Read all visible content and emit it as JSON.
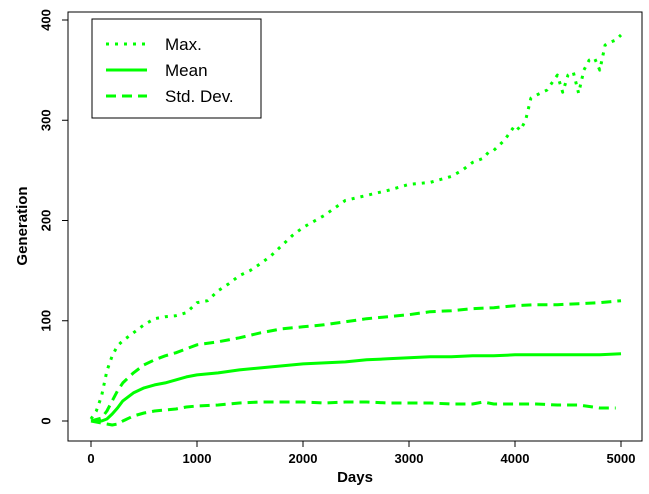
{
  "chart_data": {
    "type": "line",
    "title": "",
    "xlabel": "Days",
    "ylabel": "Generation",
    "xlim": [
      0,
      5000
    ],
    "ylim": [
      0,
      400
    ],
    "xticks": [
      "0",
      "1000",
      "2000",
      "3000",
      "4000",
      "5000"
    ],
    "yticks": [
      "0",
      "100",
      "200",
      "300",
      "400"
    ],
    "grid": false,
    "legend_position": "top-left",
    "line_color": "#00ff00",
    "series": [
      {
        "name": "Max.",
        "style": "dotted",
        "x": [
          0,
          50,
          100,
          150,
          200,
          250,
          300,
          400,
          500,
          600,
          700,
          800,
          900,
          1000,
          1100,
          1200,
          1300,
          1400,
          1500,
          1600,
          1700,
          1800,
          1900,
          2000,
          2200,
          2400,
          2600,
          2800,
          3000,
          3200,
          3400,
          3500,
          3600,
          3700,
          3750,
          3800,
          3900,
          4000,
          4050,
          4100,
          4150,
          4200,
          4300,
          4400,
          4450,
          4500,
          4550,
          4600,
          4650,
          4700,
          4750,
          4800,
          4850,
          4900,
          4950,
          5000
        ],
        "y": [
          2,
          10,
          25,
          50,
          65,
          75,
          80,
          88,
          96,
          102,
          104,
          105,
          108,
          118,
          120,
          130,
          137,
          145,
          150,
          157,
          165,
          175,
          185,
          193,
          205,
          220,
          225,
          230,
          236,
          238,
          244,
          250,
          258,
          262,
          268,
          270,
          280,
          295,
          290,
          300,
          322,
          325,
          330,
          345,
          328,
          345,
          348,
          327,
          350,
          360,
          362,
          350,
          375,
          378,
          380,
          385
        ]
      },
      {
        "name": "Mean",
        "style": "solid",
        "x": [
          0,
          100,
          150,
          200,
          250,
          300,
          400,
          500,
          600,
          700,
          800,
          900,
          1000,
          1200,
          1400,
          1600,
          1800,
          2000,
          2200,
          2400,
          2600,
          2800,
          3000,
          3200,
          3400,
          3600,
          3800,
          4000,
          4200,
          4400,
          4600,
          4800,
          5000
        ],
        "y": [
          0,
          0,
          2,
          7,
          13,
          20,
          28,
          33,
          36,
          38,
          41,
          44,
          46,
          48,
          51,
          53,
          55,
          57,
          58,
          59,
          61,
          62,
          63,
          64,
          64,
          65,
          65,
          66,
          66,
          66,
          66,
          66,
          67
        ]
      },
      {
        "name": "Std. Dev.",
        "style": "dashed",
        "x": [
          0,
          100,
          150,
          200,
          250,
          300,
          400,
          500,
          600,
          700,
          800,
          900,
          1000,
          1200,
          1400,
          1600,
          1800,
          2000,
          2200,
          2400,
          2600,
          2800,
          3000,
          3200,
          3400,
          3600,
          3800,
          4000,
          4200,
          4400,
          4600,
          4800,
          5000
        ],
        "y": [
          0,
          3,
          10,
          20,
          30,
          38,
          48,
          56,
          61,
          65,
          68,
          72,
          76,
          79,
          83,
          88,
          92,
          94,
          96,
          99,
          102,
          104,
          106,
          109,
          110,
          112,
          113,
          115,
          116,
          116,
          117,
          118,
          120
        ]
      },
      {
        "name": "",
        "style": "dashed",
        "x": [
          0,
          100,
          150,
          200,
          250,
          300,
          400,
          500,
          600,
          700,
          800,
          900,
          1000,
          1200,
          1400,
          1600,
          1800,
          2000,
          2200,
          2400,
          2600,
          2800,
          3000,
          3200,
          3400,
          3600,
          3700,
          3800,
          4000,
          4200,
          4400,
          4600,
          4800,
          4950
        ],
        "y": [
          0,
          -2,
          -3,
          -4,
          -3,
          0,
          5,
          8,
          10,
          11,
          12,
          14,
          15,
          16,
          18,
          19,
          19,
          19,
          18,
          19,
          19,
          18,
          18,
          18,
          17,
          17,
          19,
          17,
          17,
          17,
          16,
          16,
          13,
          13
        ]
      }
    ]
  }
}
